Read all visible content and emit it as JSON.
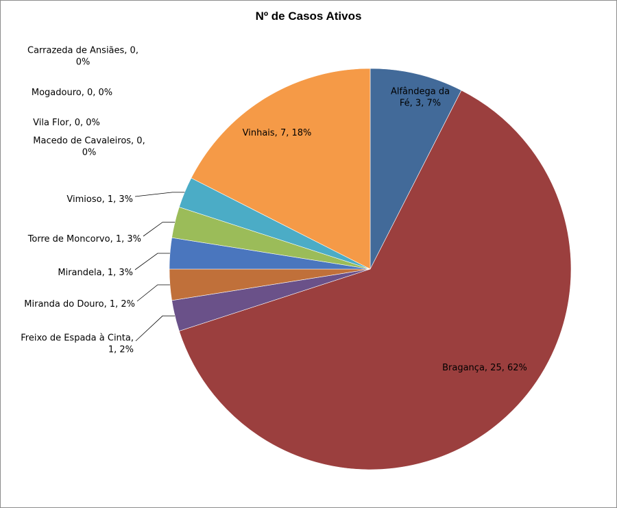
{
  "chart_data": {
    "type": "pie",
    "title": "Nº de Casos Ativos",
    "legend": "none",
    "slices": [
      {
        "name": "Alfândega da Fé",
        "value": 3,
        "percent": "7%",
        "color": "#426a99",
        "label_lines": [
          "Alfândega da",
          "Fé, 3, 7%"
        ]
      },
      {
        "name": "Bragança",
        "value": 25,
        "percent": "62%",
        "color": "#9b3f3e",
        "label_lines": [
          "Bragança, 25, 62%"
        ]
      },
      {
        "name": "Freixo de Espada à Cinta",
        "value": 1,
        "percent": "2%",
        "color": "#6a5189",
        "label_lines": [
          "Freixo de Espada à Cinta,",
          "1, 2%"
        ]
      },
      {
        "name": "Miranda do Douro",
        "value": 1,
        "percent": "2%",
        "color": "#c0703a",
        "label_lines": [
          "Miranda do Douro, 1, 2%"
        ]
      },
      {
        "name": "Mirandela",
        "value": 1,
        "percent": "3%",
        "color": "#4a76be",
        "label_lines": [
          "Mirandela, 1, 3%"
        ]
      },
      {
        "name": "Torre de Moncorvo",
        "value": 1,
        "percent": "3%",
        "color": "#9bbc59",
        "label_lines": [
          "Torre de Moncorvo, 1, 3%"
        ]
      },
      {
        "name": "Vimioso",
        "value": 1,
        "percent": "3%",
        "color": "#4bacc6",
        "label_lines": [
          "Vimioso, 1, 3%"
        ]
      },
      {
        "name": "Macedo de Cavaleiros",
        "value": 0,
        "percent": "0%",
        "color": "#7f7f7f",
        "label_lines": [
          "Macedo de Cavaleiros, 0,",
          "0%"
        ]
      },
      {
        "name": "Vila Flor",
        "value": 0,
        "percent": "0%",
        "color": "#7f7f7f",
        "label_lines": [
          "Vila Flor, 0, 0%"
        ]
      },
      {
        "name": "Mogadouro",
        "value": 0,
        "percent": "0%",
        "color": "#7f7f7f",
        "label_lines": [
          "Mogadouro, 0, 0%"
        ]
      },
      {
        "name": "Carrazeda de Ansiães",
        "value": 0,
        "percent": "0%",
        "color": "#7f7f7f",
        "label_lines": [
          "Carrazeda de Ansiães, 0,",
          "0%"
        ]
      },
      {
        "name": "Vinhais",
        "value": 7,
        "percent": "18%",
        "color": "#f59a47",
        "label_lines": [
          "Vinhais, 7, 18%"
        ]
      }
    ]
  }
}
